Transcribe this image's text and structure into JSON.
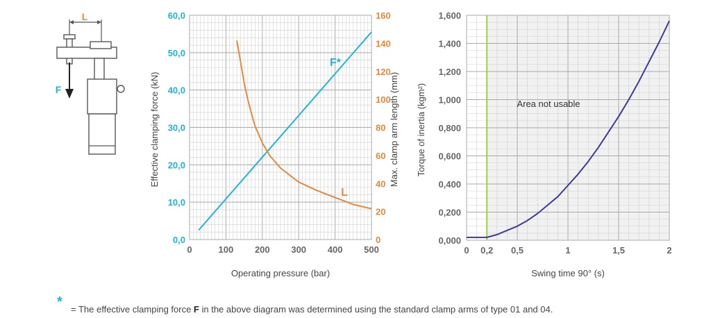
{
  "colors": {
    "cyan": "#1fb3dc",
    "orange": "#e8883a",
    "purple": "#3b3a96",
    "green": "#a8c94a",
    "grid_major": "#a9a9a9",
    "grid_minor": "#cfcfcf",
    "shade": "#f1f1f1",
    "text": "#444444"
  },
  "sketch": {
    "dimension_label": "L",
    "force_label": "F"
  },
  "footnote": {
    "marker": "*",
    "text_before": "= The effective clamping force ",
    "bold": "F",
    "text_after": " in the above diagram was determined using the standard clamp arms of type 01 and 04."
  },
  "chart_data": [
    {
      "type": "line",
      "xlabel": "Operating pressure (bar)",
      "x_ticks": [
        "0",
        "100",
        "200",
        "300",
        "400",
        "500"
      ],
      "xlim": [
        0,
        500
      ],
      "grid": true,
      "axes": {
        "left": {
          "label": "Effective clamping force (kN)",
          "ticks": [
            "0,0",
            "10,0",
            "20,0",
            "30,0",
            "40,0",
            "50,0",
            "60,0"
          ],
          "lim": [
            0,
            60
          ],
          "color": "#1fb3dc"
        },
        "right": {
          "label": "Max. clamp arm length (mm)",
          "ticks": [
            "0",
            "20",
            "40",
            "60",
            "80",
            "100",
            "120",
            "140",
            "160"
          ],
          "lim": [
            0,
            160
          ],
          "color": "#e8883a"
        }
      },
      "series": [
        {
          "name": "F*",
          "axis": "left",
          "color": "#1fb3dc",
          "x": [
            25,
            500
          ],
          "y": [
            2.5,
            55.5
          ]
        },
        {
          "name": "L",
          "axis": "right",
          "color": "#e8883a",
          "x": [
            130,
            140,
            150,
            160,
            170,
            180,
            190,
            200,
            220,
            250,
            280,
            300,
            350,
            400,
            450,
            500
          ],
          "y": [
            142,
            127,
            112,
            100,
            90,
            81,
            75,
            69,
            60,
            51,
            45,
            41,
            35,
            30,
            25,
            22
          ]
        }
      ]
    },
    {
      "type": "line",
      "xlabel": "Swing time 90° (s)",
      "ylabel": "Torque of inertia (kgm²)",
      "x_ticks": [
        "0",
        "0,2",
        "0,5",
        "1",
        "1,5",
        "2"
      ],
      "y_ticks": [
        "0,000",
        "0,200",
        "0,400",
        "0,600",
        "0,800",
        "1,000",
        "1,200",
        "1,400",
        "1,600"
      ],
      "xlim": [
        0,
        2
      ],
      "ylim": [
        0,
        1.6
      ],
      "grid": true,
      "annotation": "Area not usable",
      "threshold_x": 0.2,
      "series": [
        {
          "color": "#3b3a96",
          "x": [
            0,
            0.2,
            0.3,
            0.4,
            0.5,
            0.6,
            0.7,
            0.8,
            0.9,
            1.0,
            1.1,
            1.2,
            1.3,
            1.4,
            1.5,
            1.6,
            1.7,
            1.8,
            1.9,
            2.0
          ],
          "y": [
            0.02,
            0.02,
            0.04,
            0.07,
            0.1,
            0.14,
            0.19,
            0.25,
            0.31,
            0.39,
            0.47,
            0.56,
            0.66,
            0.77,
            0.88,
            1.0,
            1.13,
            1.27,
            1.41,
            1.56
          ]
        }
      ]
    }
  ]
}
